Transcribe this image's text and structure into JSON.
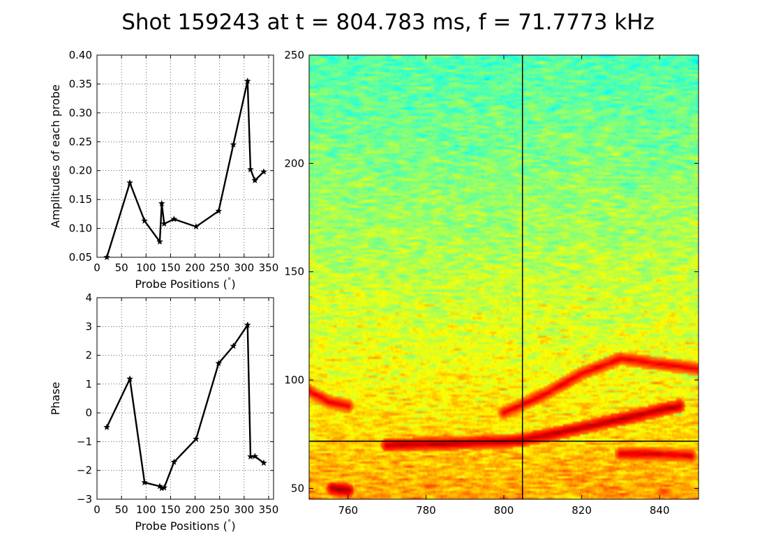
{
  "figure": {
    "title": "Shot 159243 at t = 804.783 ms, f = 71.7773 kHz"
  },
  "chart_data": [
    {
      "type": "line",
      "panel": "amplitude",
      "xlabel": "Probe Positions ($^\\circ$)",
      "xlabel_text": "Probe Positions (",
      "xlabel_deg": "°",
      "xlabel_close": ")",
      "ylabel": "Amplitudes of each probe",
      "xlim": [
        0,
        360
      ],
      "ylim": [
        0.05,
        0.4
      ],
      "xticks": [
        0,
        50,
        100,
        150,
        200,
        250,
        300,
        350
      ],
      "yticks": [
        0.05,
        0.1,
        0.15,
        0.2,
        0.25,
        0.3,
        0.35,
        0.4
      ],
      "ytick_labels": [
        "0.05",
        "0.10",
        "0.15",
        "0.20",
        "0.25",
        "0.30",
        "0.35",
        "0.40"
      ],
      "grid": true,
      "series": [
        {
          "color": "#000000",
          "marker": "star",
          "x": [
            20,
            67,
            97,
            128,
            132,
            137,
            157,
            202,
            248,
            278,
            307,
            313,
            322,
            340
          ],
          "y": [
            0.05,
            0.179,
            0.113,
            0.077,
            0.143,
            0.108,
            0.116,
            0.103,
            0.13,
            0.245,
            0.355,
            0.202,
            0.183,
            0.198
          ]
        }
      ]
    },
    {
      "type": "line",
      "panel": "phase",
      "xlabel": "Probe Positions ($^\\circ$)",
      "xlabel_text": "Probe Positions (",
      "xlabel_deg": "°",
      "xlabel_close": ")",
      "ylabel": "Phase",
      "xlim": [
        0,
        360
      ],
      "ylim": [
        -3,
        4
      ],
      "xticks": [
        0,
        50,
        100,
        150,
        200,
        250,
        300,
        350
      ],
      "yticks": [
        -3,
        -2,
        -1,
        0,
        1,
        2,
        3,
        4
      ],
      "ytick_labels": [
        "−3",
        "−2",
        "−1",
        "0",
        "1",
        "2",
        "3",
        "4"
      ],
      "grid": true,
      "series": [
        {
          "color": "#000000",
          "marker": "star",
          "x": [
            20,
            67,
            97,
            128,
            132,
            137,
            157,
            202,
            248,
            278,
            307,
            313,
            322,
            340
          ],
          "y": [
            -0.5,
            1.18,
            -2.42,
            -2.55,
            -2.62,
            -2.6,
            -1.71,
            -0.91,
            1.72,
            2.32,
            3.05,
            -1.52,
            -1.51,
            -1.74
          ]
        }
      ]
    },
    {
      "type": "heatmap",
      "panel": "spectrogram",
      "colormap": "jet",
      "xlim": [
        750,
        850
      ],
      "ylim": [
        45,
        250
      ],
      "xticks": [
        760,
        780,
        800,
        820,
        840
      ],
      "yticks": [
        50,
        100,
        150,
        200,
        250
      ],
      "marker_time": 804.783,
      "marker_freq": 71.7773,
      "background_level_low_freq": 0.72,
      "background_level_high_freq": 0.45,
      "features": [
        {
          "name": "mode-lower",
          "points": [
            [
              770,
              70
            ],
            [
              790,
              71
            ],
            [
              804,
              72
            ],
            [
              815,
              76
            ],
            [
              830,
              82
            ],
            [
              845,
              88
            ]
          ],
          "level": 0.95
        },
        {
          "name": "mode-upper",
          "points": [
            [
              800,
              85
            ],
            [
              810,
              93
            ],
            [
              820,
              103
            ],
            [
              830,
              110
            ],
            [
              850,
              105
            ]
          ],
          "level": 0.9
        },
        {
          "name": "low-left",
          "points": [
            [
              750,
              95
            ],
            [
              755,
              90
            ],
            [
              760,
              88
            ]
          ],
          "level": 0.9
        },
        {
          "name": "bottom-left",
          "points": [
            [
              756,
              50
            ],
            [
              760,
              49
            ]
          ],
          "level": 0.98
        },
        {
          "name": "low-right",
          "points": [
            [
              830,
              66
            ],
            [
              838,
              66
            ],
            [
              848,
              65
            ]
          ],
          "level": 0.92
        }
      ]
    }
  ]
}
